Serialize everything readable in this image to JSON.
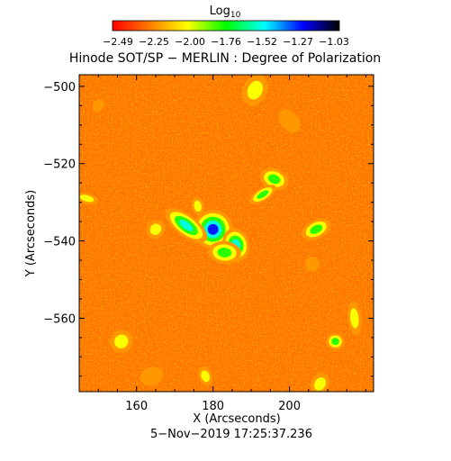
{
  "chart_data": {
    "type": "heatmap",
    "title": "Hinode SOT/SP − MERLIN : Degree of Polarization",
    "xlabel": "X (Arcseconds)",
    "ylabel": "Y (Arcseconds)",
    "xlim": [
      145,
      222
    ],
    "ylim": [
      -579,
      -497
    ],
    "x_ticks": [
      160,
      180,
      200
    ],
    "y_ticks": [
      -500,
      -520,
      -540,
      -560
    ],
    "x_tick_labels": [
      "160",
      "180",
      "200"
    ],
    "y_tick_labels": [
      "−500",
      "−520",
      "−540",
      "−560"
    ],
    "timestamp": "5−Nov−2019 17:25:37.236",
    "colorbar": {
      "label_base": "Log",
      "label_sub": "10",
      "range": [
        -2.49,
        -1.03
      ],
      "tick_labels": [
        "−2.49",
        "−2.25",
        "−2.00",
        "−1.76",
        "−1.52",
        "−1.27",
        "−1.03"
      ],
      "colormap": [
        "#ff0000",
        "#ff8000",
        "#ffff00",
        "#00ff00",
        "#00ffff",
        "#0000ff",
        "#000000"
      ]
    },
    "background_color": "#ff7f00",
    "features": [
      {
        "x": 180,
        "y": -537,
        "value": -1.25
      },
      {
        "x": 173,
        "y": -536,
        "value": -1.35
      },
      {
        "x": 186,
        "y": -541,
        "value": -1.35
      },
      {
        "x": 196,
        "y": -524,
        "value": -1.6
      },
      {
        "x": 193,
        "y": -528,
        "value": -1.8
      },
      {
        "x": 183,
        "y": -543,
        "value": -1.8
      },
      {
        "x": 165,
        "y": -537,
        "value": -1.9
      },
      {
        "x": 176,
        "y": -531,
        "value": -1.9
      },
      {
        "x": 191,
        "y": -501,
        "value": -1.85
      },
      {
        "x": 207,
        "y": -537,
        "value": -1.75
      },
      {
        "x": 212,
        "y": -566,
        "value": -1.75
      },
      {
        "x": 156,
        "y": -566,
        "value": -1.9
      },
      {
        "x": 217,
        "y": -560,
        "value": -1.85
      },
      {
        "x": 208,
        "y": -577,
        "value": -1.9
      },
      {
        "x": 178,
        "y": -575,
        "value": -2.0
      },
      {
        "x": 147,
        "y": -529,
        "value": -2.0
      },
      {
        "x": 200,
        "y": -509,
        "value": -2.05
      },
      {
        "x": 206,
        "y": -546,
        "value": -2.1
      },
      {
        "x": 150,
        "y": -505,
        "value": -2.1
      },
      {
        "x": 164,
        "y": -575,
        "value": -2.1
      }
    ]
  }
}
